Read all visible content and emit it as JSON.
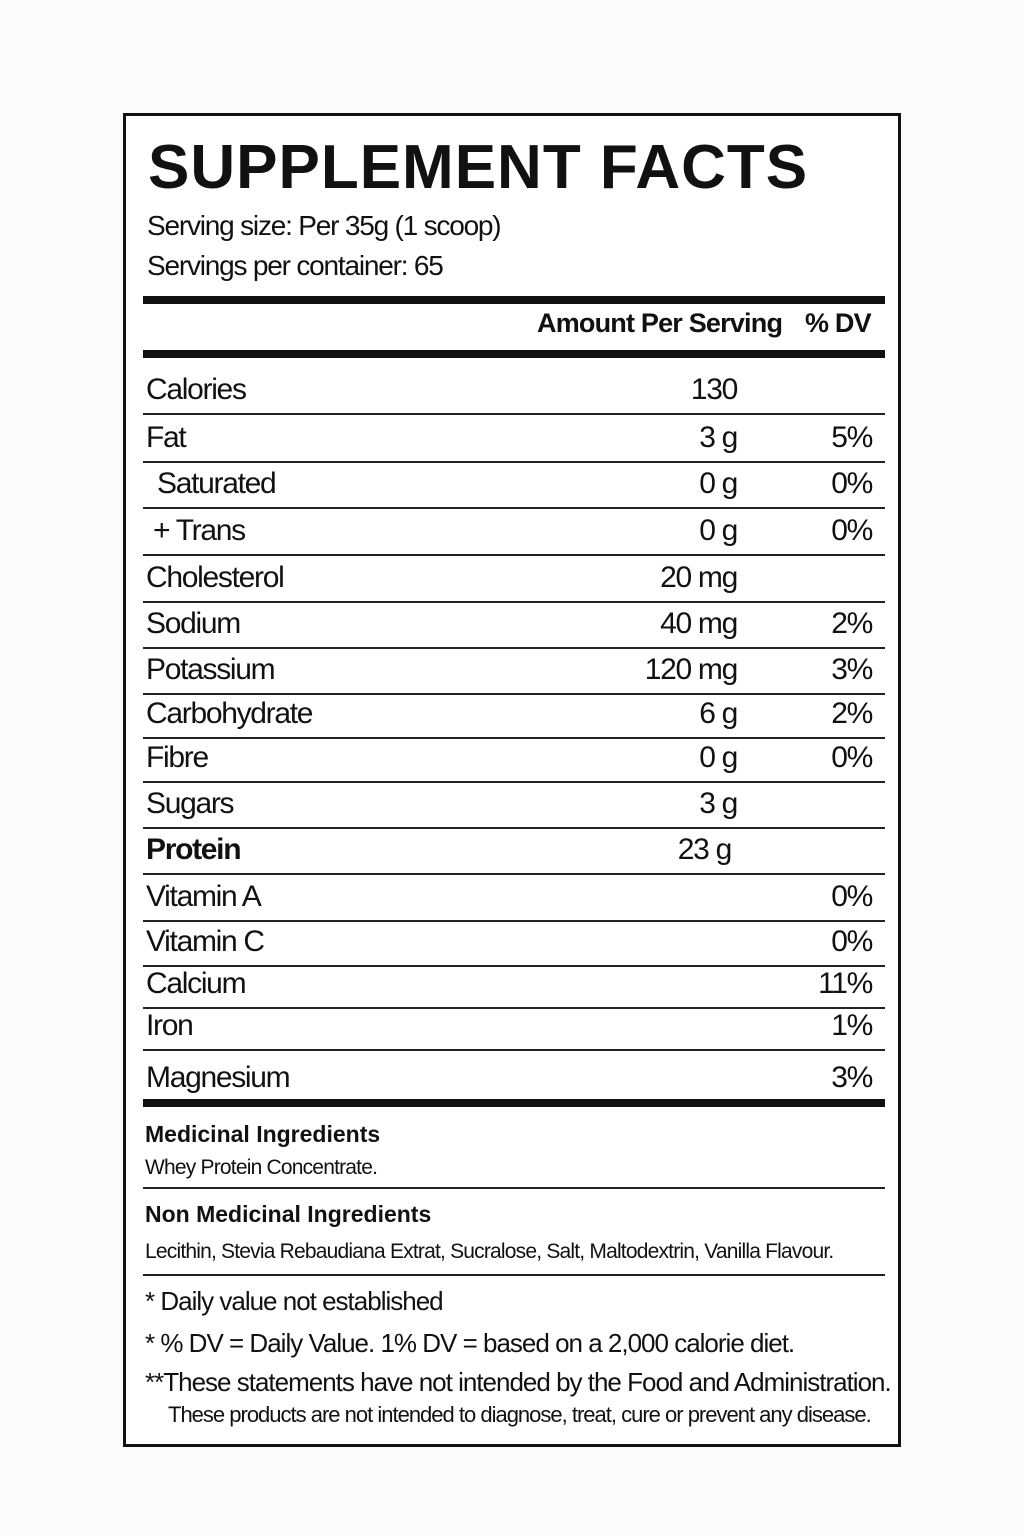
{
  "title": "SUPPLEMENT FACTS",
  "serving_size": "Serving size: Per 35g (1 scoop)",
  "servings_per_container": "Servings per container: 65",
  "header": {
    "amount": "Amount Per Serving",
    "dv": "% DV"
  },
  "rows": [
    {
      "name": "Calories",
      "amount": "130",
      "dv": ""
    },
    {
      "name": "Fat",
      "amount": "3 g",
      "dv": "5%"
    },
    {
      "name": "Saturated",
      "amount": "0 g",
      "dv": "0%"
    },
    {
      "name": "+ Trans",
      "amount": "0 g",
      "dv": "0%"
    },
    {
      "name": "Cholesterol",
      "amount": "20 mg",
      "dv": ""
    },
    {
      "name": "Sodium",
      "amount": "40 mg",
      "dv": "2%"
    },
    {
      "name": "Potassium",
      "amount": "120 mg",
      "dv": "3%"
    },
    {
      "name": "Carbohydrate",
      "amount": "6 g",
      "dv": "2%"
    },
    {
      "name": "Fibre",
      "amount": "0 g",
      "dv": "0%"
    },
    {
      "name": "Sugars",
      "amount": "3 g",
      "dv": ""
    },
    {
      "name": "Protein",
      "amount": "23 g",
      "dv": ""
    },
    {
      "name": "Vitamin A",
      "amount": "",
      "dv": "0%"
    },
    {
      "name": "Vitamin C",
      "amount": "",
      "dv": "0%"
    },
    {
      "name": "Calcium",
      "amount": "",
      "dv": "11%"
    },
    {
      "name": "Iron",
      "amount": "",
      "dv": "1%"
    },
    {
      "name": "Magnesium",
      "amount": "",
      "dv": "3%"
    }
  ],
  "medicinal": {
    "heading": "Medicinal Ingredients",
    "text": "Whey Protein Concentrate."
  },
  "non_medicinal": {
    "heading": "Non Medicinal Ingredients",
    "text": "Lecithin, Stevia Rebaudiana Extrat, Sucralose, Salt, Maltodextrin, Vanilla Flavour."
  },
  "footnotes": [
    "* Daily value not established",
    "* % DV = Daily Value. 1% DV = based on a 2,000 calorie diet.",
    "**These statements have not intended by the Food and Administration.",
    "These products are not intended to diagnose, treat, cure or prevent any disease."
  ]
}
